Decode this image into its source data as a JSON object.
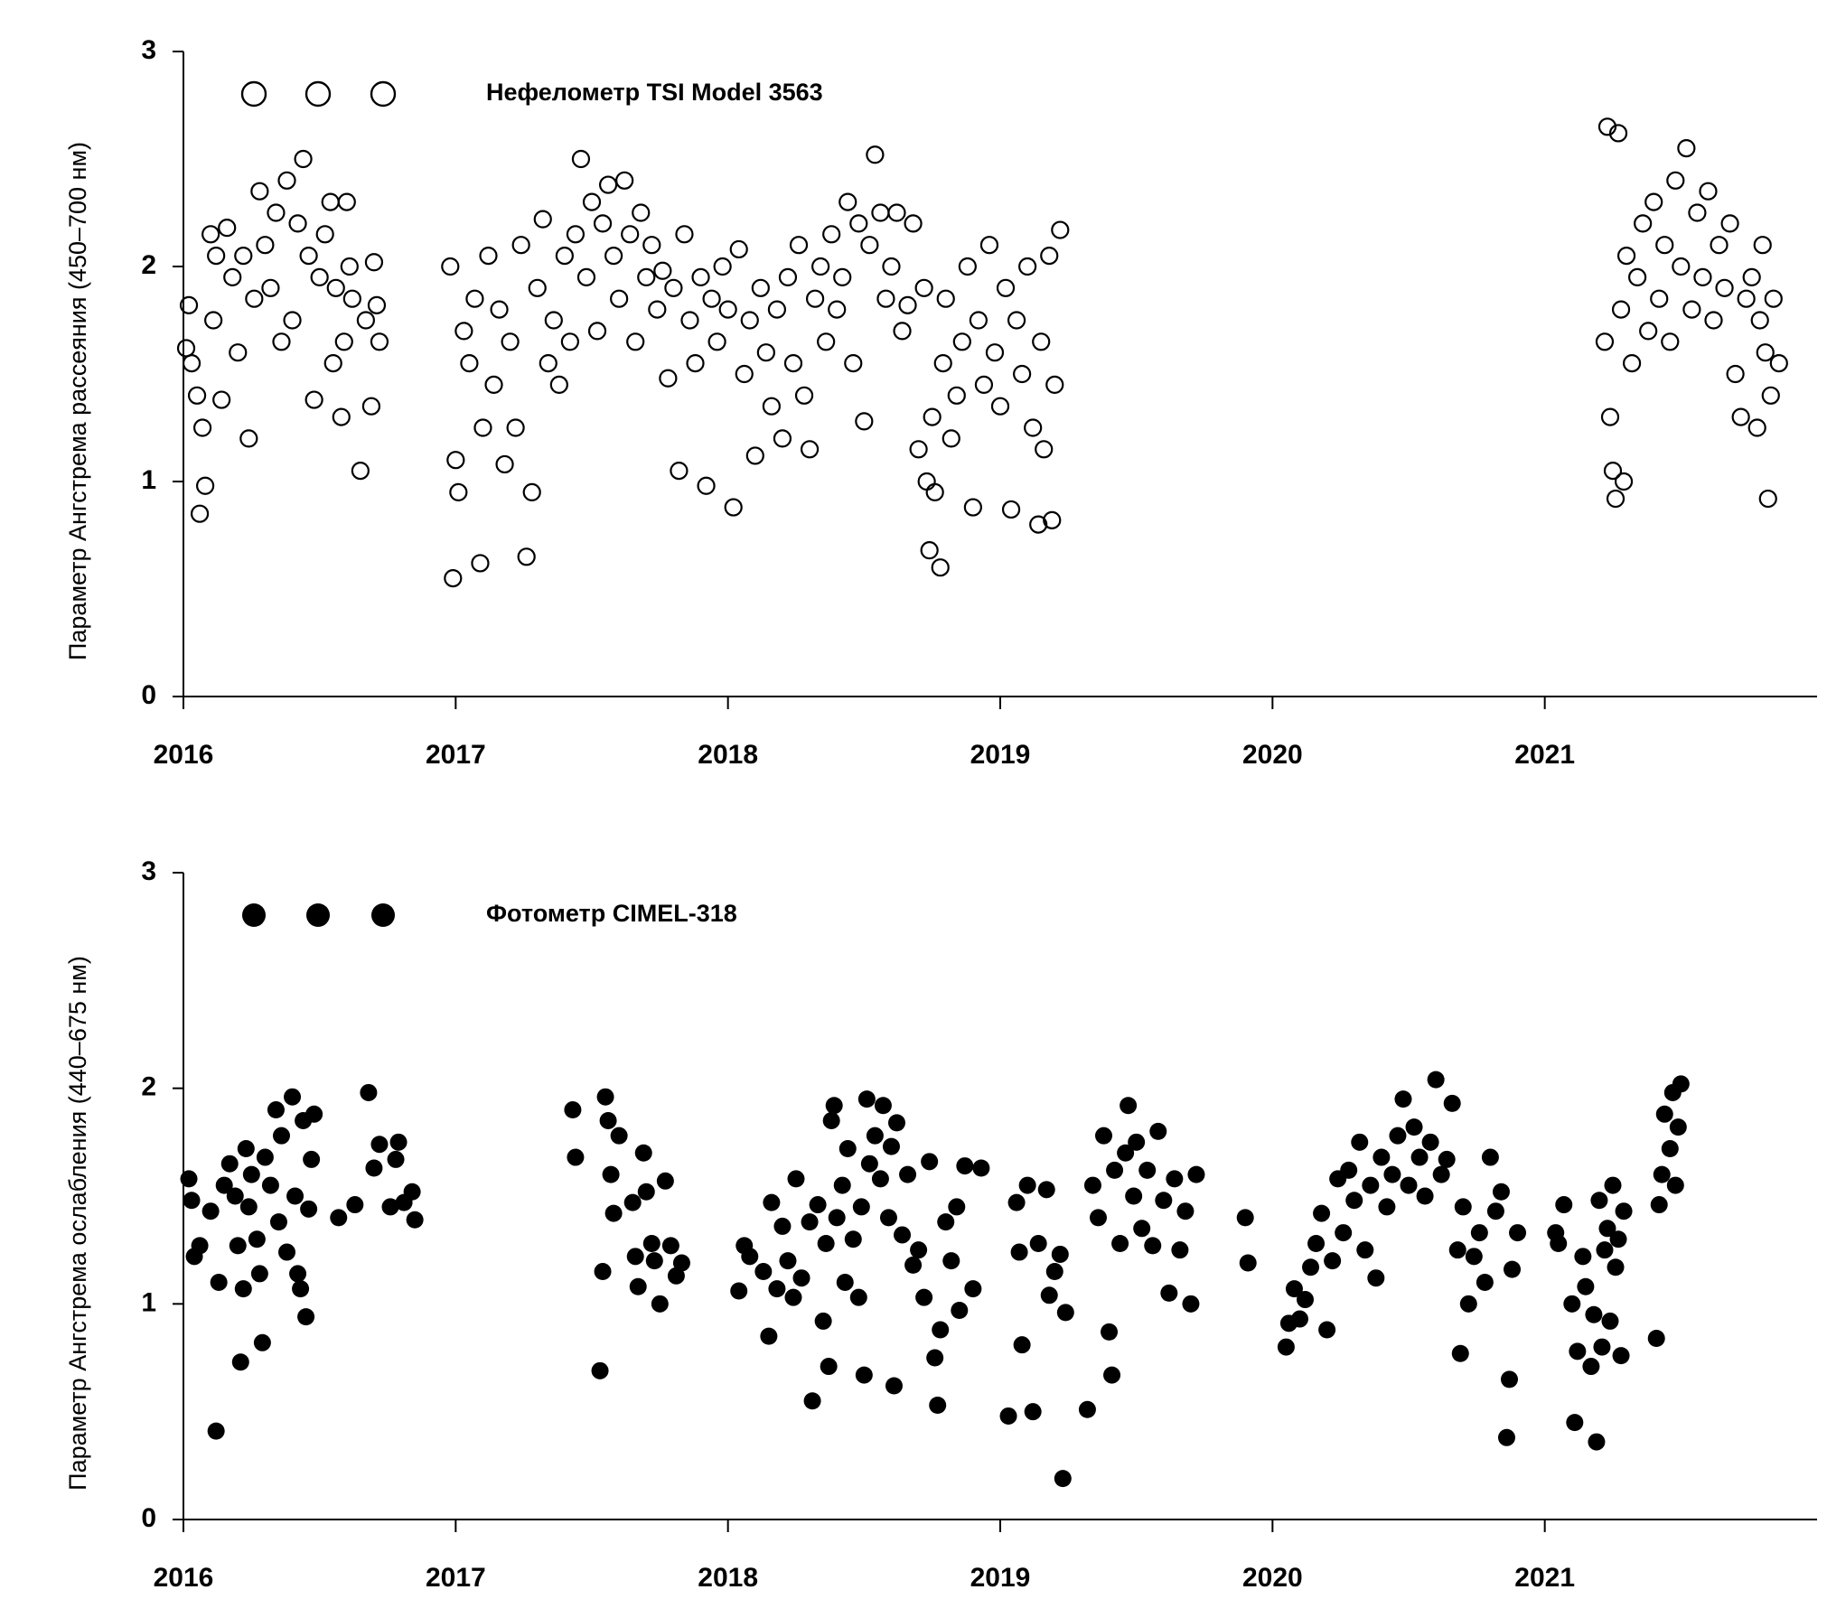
{
  "chart_data": [
    {
      "type": "scatter",
      "y_label": "Параметр Ангстрема рассеяния (450–700 нм)",
      "xlim": [
        2016,
        2022
      ],
      "ylim": [
        0,
        3
      ],
      "xticks": [
        2016,
        2017,
        2018,
        2019,
        2020,
        2021
      ],
      "yticks": [
        0,
        1,
        2,
        3
      ],
      "series": [
        {
          "name": "Нефелометр TSI Model 3563",
          "color": "#000000",
          "marker": "open",
          "x": [
            2016.01,
            2016.02,
            2016.03,
            2016.05,
            2016.06,
            2016.07,
            2016.08,
            2016.1,
            2016.11,
            2016.12,
            2016.14,
            2016.16,
            2016.18,
            2016.2,
            2016.22,
            2016.24,
            2016.26,
            2016.28,
            2016.3,
            2016.32,
            2016.34,
            2016.36,
            2016.38,
            2016.4,
            2016.42,
            2016.44,
            2016.46,
            2016.48,
            2016.5,
            2016.52,
            2016.54,
            2016.55,
            2016.56,
            2016.58,
            2016.59,
            2016.6,
            2016.61,
            2016.62,
            2016.65,
            2016.67,
            2016.69,
            2016.7,
            2016.71,
            2016.72,
            2016.98,
            2016.99,
            2017.0,
            2017.01,
            2017.03,
            2017.05,
            2017.07,
            2017.09,
            2017.1,
            2017.12,
            2017.14,
            2017.16,
            2017.18,
            2017.2,
            2017.22,
            2017.24,
            2017.26,
            2017.28,
            2017.3,
            2017.32,
            2017.34,
            2017.36,
            2017.38,
            2017.4,
            2017.42,
            2017.44,
            2017.46,
            2017.48,
            2017.5,
            2017.52,
            2017.54,
            2017.56,
            2017.58,
            2017.6,
            2017.62,
            2017.64,
            2017.66,
            2017.68,
            2017.7,
            2017.72,
            2017.74,
            2017.76,
            2017.78,
            2017.8,
            2017.82,
            2017.84,
            2017.86,
            2017.88,
            2017.9,
            2017.92,
            2017.94,
            2017.96,
            2017.98,
            2018.0,
            2018.02,
            2018.04,
            2018.06,
            2018.08,
            2018.1,
            2018.12,
            2018.14,
            2018.16,
            2018.18,
            2018.2,
            2018.22,
            2018.24,
            2018.26,
            2018.28,
            2018.3,
            2018.32,
            2018.34,
            2018.36,
            2018.38,
            2018.4,
            2018.42,
            2018.44,
            2018.46,
            2018.48,
            2018.5,
            2018.52,
            2018.54,
            2018.56,
            2018.58,
            2018.6,
            2018.62,
            2018.64,
            2018.66,
            2018.68,
            2018.7,
            2018.72,
            2018.73,
            2018.74,
            2018.75,
            2018.76,
            2018.78,
            2018.79,
            2018.8,
            2018.82,
            2018.84,
            2018.86,
            2018.88,
            2018.9,
            2018.92,
            2018.94,
            2018.96,
            2018.98,
            2019.0,
            2019.02,
            2019.04,
            2019.06,
            2019.08,
            2019.1,
            2019.12,
            2019.14,
            2019.15,
            2019.16,
            2019.18,
            2019.19,
            2019.2,
            2019.22,
            2021.22,
            2021.23,
            2021.24,
            2021.25,
            2021.26,
            2021.27,
            2021.28,
            2021.29,
            2021.3,
            2021.32,
            2021.34,
            2021.36,
            2021.38,
            2021.4,
            2021.42,
            2021.44,
            2021.46,
            2021.48,
            2021.5,
            2021.52,
            2021.54,
            2021.56,
            2021.58,
            2021.6,
            2021.62,
            2021.64,
            2021.66,
            2021.68,
            2021.7,
            2021.72,
            2021.74,
            2021.76,
            2021.78,
            2021.79,
            2021.8,
            2021.81,
            2021.82,
            2021.83,
            2021.84,
            2021.86
          ],
          "values": [
            1.62,
            1.82,
            1.55,
            1.4,
            0.85,
            1.25,
            0.98,
            2.15,
            1.75,
            2.05,
            1.38,
            2.18,
            1.95,
            1.6,
            2.05,
            1.2,
            1.85,
            2.35,
            2.1,
            1.9,
            2.25,
            1.65,
            2.4,
            1.75,
            2.2,
            2.5,
            2.05,
            1.38,
            1.95,
            2.15,
            2.3,
            1.55,
            1.9,
            1.3,
            1.65,
            2.3,
            2.0,
            1.85,
            1.05,
            1.75,
            1.35,
            2.02,
            1.82,
            1.65,
            2.0,
            0.55,
            1.1,
            0.95,
            1.7,
            1.55,
            1.85,
            0.62,
            1.25,
            2.05,
            1.45,
            1.8,
            1.08,
            1.65,
            1.25,
            2.1,
            0.65,
            0.95,
            1.9,
            2.22,
            1.55,
            1.75,
            1.45,
            2.05,
            1.65,
            2.15,
            2.5,
            1.95,
            2.3,
            1.7,
            2.2,
            2.38,
            2.05,
            1.85,
            2.4,
            2.15,
            1.65,
            2.25,
            1.95,
            2.1,
            1.8,
            1.98,
            1.48,
            1.9,
            1.05,
            2.15,
            1.75,
            1.55,
            1.95,
            0.98,
            1.85,
            1.65,
            2.0,
            1.8,
            0.88,
            2.08,
            1.5,
            1.75,
            1.12,
            1.9,
            1.6,
            1.35,
            1.8,
            1.2,
            1.95,
            1.55,
            2.1,
            1.4,
            1.15,
            1.85,
            2.0,
            1.65,
            2.15,
            1.8,
            1.95,
            2.3,
            1.55,
            2.2,
            1.28,
            2.1,
            2.52,
            2.25,
            1.85,
            2.0,
            2.25,
            1.7,
            1.82,
            2.2,
            1.15,
            1.9,
            1.0,
            0.68,
            1.3,
            0.95,
            0.6,
            1.55,
            1.85,
            1.2,
            1.4,
            1.65,
            2.0,
            0.88,
            1.75,
            1.45,
            2.1,
            1.6,
            1.35,
            1.9,
            0.87,
            1.75,
            1.5,
            2.0,
            1.25,
            0.8,
            1.65,
            1.15,
            2.05,
            0.82,
            1.45,
            2.17,
            1.65,
            2.65,
            1.3,
            1.05,
            0.92,
            2.62,
            1.8,
            1.0,
            2.05,
            1.55,
            1.95,
            2.2,
            1.7,
            2.3,
            1.85,
            2.1,
            1.65,
            2.4,
            2.0,
            2.55,
            1.8,
            2.25,
            1.95,
            2.35,
            1.75,
            2.1,
            1.9,
            2.2,
            1.5,
            1.3,
            1.85,
            1.95,
            1.25,
            1.75,
            2.1,
            1.6,
            0.92,
            1.4,
            1.85,
            1.55
          ]
        }
      ]
    },
    {
      "type": "scatter",
      "y_label": "Параметр Ангстрема ослабления (440–675 нм)",
      "xlim": [
        2016,
        2022
      ],
      "ylim": [
        0,
        3
      ],
      "xticks": [
        2016,
        2017,
        2018,
        2019,
        2020,
        2021
      ],
      "yticks": [
        0,
        1,
        2,
        3
      ],
      "series": [
        {
          "name": "Фотометр CIMEL-318",
          "color": "#000000",
          "marker": "filled",
          "x": [
            2016.02,
            2016.03,
            2016.04,
            2016.06,
            2016.1,
            2016.12,
            2016.13,
            2016.15,
            2016.17,
            2016.19,
            2016.2,
            2016.21,
            2016.22,
            2016.23,
            2016.24,
            2016.25,
            2016.27,
            2016.28,
            2016.29,
            2016.3,
            2016.32,
            2016.34,
            2016.35,
            2016.36,
            2016.38,
            2016.4,
            2016.41,
            2016.42,
            2016.43,
            2016.44,
            2016.45,
            2016.46,
            2016.47,
            2016.48,
            2016.57,
            2016.63,
            2016.68,
            2016.7,
            2016.72,
            2016.76,
            2016.78,
            2016.79,
            2016.81,
            2016.84,
            2016.85,
            2017.43,
            2017.44,
            2017.53,
            2017.54,
            2017.55,
            2017.56,
            2017.57,
            2017.58,
            2017.6,
            2017.65,
            2017.66,
            2017.67,
            2017.69,
            2017.7,
            2017.72,
            2017.73,
            2017.75,
            2017.77,
            2017.79,
            2017.81,
            2017.83,
            2018.04,
            2018.06,
            2018.08,
            2018.13,
            2018.15,
            2018.16,
            2018.18,
            2018.2,
            2018.22,
            2018.24,
            2018.25,
            2018.27,
            2018.3,
            2018.31,
            2018.33,
            2018.35,
            2018.36,
            2018.37,
            2018.38,
            2018.39,
            2018.4,
            2018.42,
            2018.43,
            2018.44,
            2018.46,
            2018.48,
            2018.49,
            2018.5,
            2018.51,
            2018.52,
            2018.54,
            2018.56,
            2018.57,
            2018.59,
            2018.6,
            2018.61,
            2018.62,
            2018.64,
            2018.66,
            2018.68,
            2018.7,
            2018.72,
            2018.74,
            2018.76,
            2018.77,
            2018.78,
            2018.8,
            2018.82,
            2018.84,
            2018.85,
            2018.87,
            2018.9,
            2018.93,
            2019.03,
            2019.06,
            2019.07,
            2019.08,
            2019.1,
            2019.12,
            2019.14,
            2019.17,
            2019.18,
            2019.2,
            2019.22,
            2019.23,
            2019.24,
            2019.32,
            2019.34,
            2019.36,
            2019.38,
            2019.4,
            2019.41,
            2019.42,
            2019.44,
            2019.46,
            2019.47,
            2019.49,
            2019.5,
            2019.52,
            2019.54,
            2019.56,
            2019.58,
            2019.6,
            2019.62,
            2019.64,
            2019.66,
            2019.68,
            2019.7,
            2019.72,
            2019.9,
            2019.91,
            2020.05,
            2020.06,
            2020.08,
            2020.1,
            2020.12,
            2020.14,
            2020.16,
            2020.18,
            2020.2,
            2020.22,
            2020.24,
            2020.26,
            2020.28,
            2020.3,
            2020.32,
            2020.34,
            2020.36,
            2020.38,
            2020.4,
            2020.42,
            2020.44,
            2020.46,
            2020.48,
            2020.5,
            2020.52,
            2020.54,
            2020.56,
            2020.58,
            2020.6,
            2020.62,
            2020.64,
            2020.66,
            2020.68,
            2020.69,
            2020.7,
            2020.72,
            2020.74,
            2020.76,
            2020.78,
            2020.8,
            2020.82,
            2020.84,
            2020.86,
            2020.87,
            2020.88,
            2020.9,
            2021.04,
            2021.05,
            2021.07,
            2021.1,
            2021.11,
            2021.12,
            2021.14,
            2021.15,
            2021.17,
            2021.18,
            2021.19,
            2021.2,
            2021.21,
            2021.22,
            2021.23,
            2021.24,
            2021.25,
            2021.26,
            2021.27,
            2021.28,
            2021.29,
            2021.41,
            2021.42,
            2021.43,
            2021.44,
            2021.46,
            2021.47,
            2021.48,
            2021.49,
            2021.5
          ],
          "values": [
            1.58,
            1.48,
            1.22,
            1.27,
            1.43,
            0.41,
            1.1,
            1.55,
            1.65,
            1.5,
            1.27,
            0.73,
            1.07,
            1.72,
            1.45,
            1.6,
            1.3,
            1.14,
            0.82,
            1.68,
            1.55,
            1.9,
            1.38,
            1.78,
            1.24,
            1.96,
            1.5,
            1.14,
            1.07,
            1.85,
            0.94,
            1.44,
            1.67,
            1.88,
            1.4,
            1.46,
            1.98,
            1.63,
            1.74,
            1.45,
            1.67,
            1.75,
            1.47,
            1.52,
            1.39,
            1.9,
            1.68,
            0.69,
            1.15,
            1.96,
            1.85,
            1.6,
            1.42,
            1.78,
            1.47,
            1.22,
            1.08,
            1.7,
            1.52,
            1.28,
            1.2,
            1.0,
            1.57,
            1.27,
            1.13,
            1.19,
            1.06,
            1.27,
            1.22,
            1.15,
            0.85,
            1.47,
            1.07,
            1.36,
            1.2,
            1.03,
            1.58,
            1.12,
            1.38,
            0.55,
            1.46,
            0.92,
            1.28,
            0.71,
            1.85,
            1.92,
            1.4,
            1.55,
            1.1,
            1.72,
            1.3,
            1.03,
            1.45,
            0.67,
            1.95,
            1.65,
            1.78,
            1.58,
            1.92,
            1.4,
            1.73,
            0.62,
            1.84,
            1.32,
            1.6,
            1.18,
            1.25,
            1.03,
            1.66,
            0.75,
            0.53,
            0.88,
            1.38,
            1.2,
            1.45,
            0.97,
            1.64,
            1.07,
            1.63,
            0.48,
            1.47,
            1.24,
            0.81,
            1.55,
            0.5,
            1.28,
            1.53,
            1.04,
            1.15,
            1.23,
            0.19,
            0.96,
            0.51,
            1.55,
            1.4,
            1.78,
            0.87,
            0.67,
            1.62,
            1.28,
            1.7,
            1.92,
            1.5,
            1.75,
            1.35,
            1.62,
            1.27,
            1.8,
            1.48,
            1.05,
            1.58,
            1.25,
            1.43,
            1.0,
            1.6,
            1.4,
            1.19,
            0.8,
            0.91,
            1.07,
            0.93,
            1.02,
            1.17,
            1.28,
            1.42,
            0.88,
            1.2,
            1.58,
            1.33,
            1.62,
            1.48,
            1.75,
            1.25,
            1.55,
            1.12,
            1.68,
            1.45,
            1.6,
            1.78,
            1.95,
            1.55,
            1.82,
            1.68,
            1.5,
            1.75,
            2.04,
            1.6,
            1.67,
            1.93,
            1.25,
            0.77,
            1.45,
            1.0,
            1.22,
            1.33,
            1.1,
            1.68,
            1.43,
            1.52,
            0.38,
            0.65,
            1.16,
            1.33,
            1.33,
            1.28,
            1.46,
            1.0,
            0.45,
            0.78,
            1.22,
            1.08,
            0.71,
            0.95,
            0.36,
            1.48,
            0.8,
            1.25,
            1.35,
            0.92,
            1.55,
            1.17,
            1.3,
            0.76,
            1.43,
            0.84,
            1.46,
            1.6,
            1.88,
            1.72,
            1.98,
            1.55,
            1.82,
            2.02
          ]
        }
      ]
    }
  ]
}
